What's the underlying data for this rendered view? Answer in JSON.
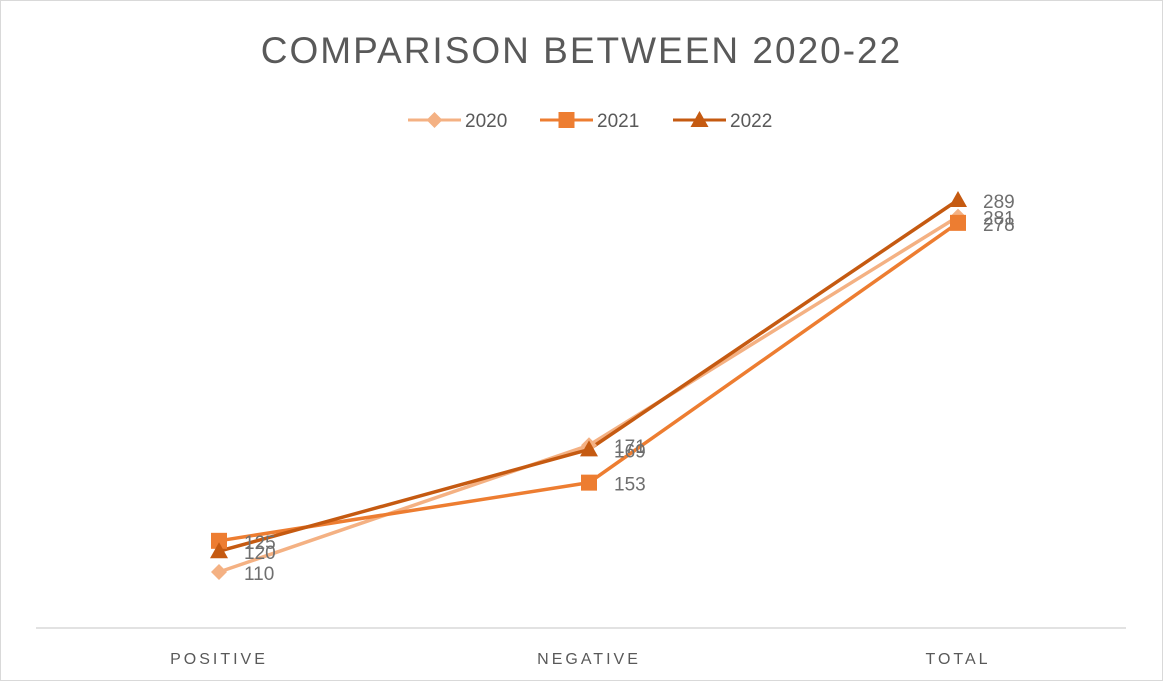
{
  "chart_data": {
    "type": "line",
    "title": "COMPARISON BETWEEN 2020-22",
    "categories": [
      "POSITIVE",
      "NEGATIVE",
      "TOTAL"
    ],
    "series": [
      {
        "name": "2020",
        "values": [
          110,
          171,
          281
        ],
        "color": "#f4b183",
        "marker": "diamond"
      },
      {
        "name": "2021",
        "values": [
          125,
          153,
          278
        ],
        "color": "#ed7d31",
        "marker": "square"
      },
      {
        "name": "2022",
        "values": [
          120,
          169,
          289
        ],
        "color": "#c55a11",
        "marker": "triangle"
      }
    ],
    "legend_position": "top",
    "grid": false,
    "show_data_labels": true
  }
}
